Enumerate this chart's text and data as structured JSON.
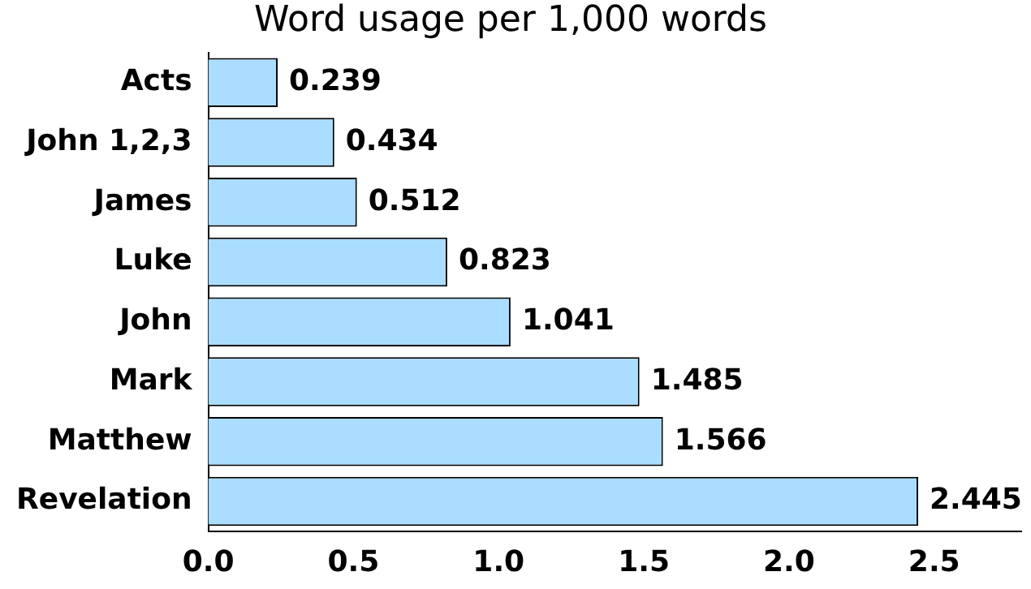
{
  "chart_data": {
    "type": "bar",
    "orientation": "horizontal",
    "title": "Word usage per 1,000 words",
    "categories": [
      "Acts",
      "John 1,2,3",
      "James",
      "Luke",
      "John",
      "Mark",
      "Matthew",
      "Revelation"
    ],
    "values": [
      0.239,
      0.434,
      0.512,
      0.823,
      1.041,
      1.485,
      1.566,
      2.445
    ],
    "color": "#aaddff",
    "xlim": [
      0,
      2.8
    ],
    "xticks": [
      {
        "value": 0,
        "label": "0.0"
      },
      {
        "value": 0.5,
        "label": "0.5"
      },
      {
        "value": 1,
        "label": "1.0"
      },
      {
        "value": 1.5,
        "label": "1.5"
      },
      {
        "value": 2,
        "label": "2.0"
      },
      {
        "value": 2.5,
        "label": "2.5"
      }
    ],
    "grid": false,
    "legend": false,
    "data_labels": true
  }
}
